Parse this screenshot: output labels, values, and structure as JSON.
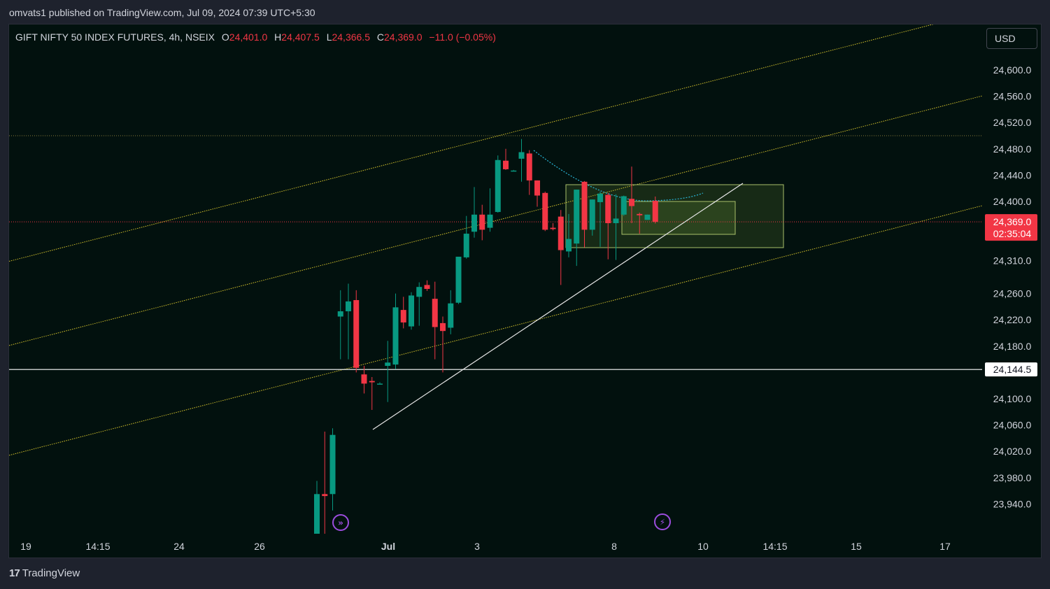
{
  "header": {
    "publish_text": "omvats1 published on TradingView.com, Jul 09, 2024 07:39 UTC+5:30"
  },
  "legend": {
    "symbol": "GIFT NIFTY 50 INDEX FUTURES, 4h, NSEIX",
    "o_label": "O",
    "o_value": "24,401.0",
    "h_label": "H",
    "h_value": "24,407.5",
    "l_label": "L",
    "l_value": "24,366.5",
    "c_label": "C",
    "c_value": "24,369.0",
    "change": "−11.0 (−0.05%)"
  },
  "currency_button": "USD",
  "footer": {
    "brand_mark": "17",
    "brand": "TradingView"
  },
  "colors": {
    "up": "#089981",
    "down": "#f23645",
    "background": "#02110e",
    "channel": "#d4c22c",
    "trendline": "#e6e6e6",
    "arc": "#2ab7d8",
    "price_badge": "#f23645",
    "event_icon": "#9c4dde"
  },
  "chart_data": {
    "type": "candlestick",
    "interval": "4h",
    "y_ticks": [
      23940,
      23980,
      24020,
      24060,
      24100,
      24144.5,
      24180,
      24220,
      24260,
      24310,
      24400,
      24440,
      24480,
      24520,
      24560,
      24600
    ],
    "y_tick_labels": [
      "23,940.0",
      "23,980.0",
      "24,020.0",
      "24,060.0",
      "24,100.0",
      "24,144.5",
      "24,180.0",
      "24,220.0",
      "24,260.0",
      "24,310.0",
      "24,400.0",
      "24,440.0",
      "24,480.0",
      "24,520.0",
      "24,560.0",
      "24,600.0"
    ],
    "x_labels": [
      "19",
      "14:15",
      "24",
      "26",
      "Jul",
      "3",
      "8",
      "10",
      "14:15",
      "15",
      "17"
    ],
    "last_price": {
      "label": "24,369.0",
      "countdown": "02:35:04",
      "value": 24369.0
    },
    "horizontal_line": {
      "label": "24,144.5",
      "value": 24144.5
    },
    "candles": [
      {
        "o": 23880,
        "h": 23975,
        "l": 23880,
        "c": 23955
      },
      {
        "o": 23955,
        "h": 24050,
        "l": 23880,
        "c": 23952
      },
      {
        "o": 23955,
        "h": 24055,
        "l": 23930,
        "c": 24045
      },
      {
        "o": 24225,
        "h": 24265,
        "l": 24160,
        "c": 24233
      },
      {
        "o": 24233,
        "h": 24275,
        "l": 24160,
        "c": 24248
      },
      {
        "o": 24250,
        "h": 24265,
        "l": 24140,
        "c": 24147
      },
      {
        "o": 24137,
        "h": 24150,
        "l": 24108,
        "c": 24123
      },
      {
        "o": 24127,
        "h": 24133,
        "l": 24083,
        "c": 24125
      },
      {
        "o": 24123,
        "h": 24125,
        "l": 24125,
        "c": 24123
      },
      {
        "o": 24150,
        "h": 24188,
        "l": 24095,
        "c": 24155
      },
      {
        "o": 24152,
        "h": 24260,
        "l": 24145,
        "c": 24239
      },
      {
        "o": 24235,
        "h": 24255,
        "l": 24207,
        "c": 24216
      },
      {
        "o": 24210,
        "h": 24262,
        "l": 24205,
        "c": 24257
      },
      {
        "o": 24255,
        "h": 24277,
        "l": 24211,
        "c": 24270
      },
      {
        "o": 24273,
        "h": 24280,
        "l": 24264,
        "c": 24267
      },
      {
        "o": 24252,
        "h": 24278,
        "l": 24160,
        "c": 24209
      },
      {
        "o": 24215,
        "h": 24225,
        "l": 24140,
        "c": 24203
      },
      {
        "o": 24208,
        "h": 24265,
        "l": 24198,
        "c": 24245
      },
      {
        "o": 24246,
        "h": 24310,
        "l": 24244,
        "c": 24316
      },
      {
        "o": 24315,
        "h": 24378,
        "l": 24313,
        "c": 24351
      },
      {
        "o": 24354,
        "h": 24422,
        "l": 24345,
        "c": 24380
      },
      {
        "o": 24380,
        "h": 24395,
        "l": 24341,
        "c": 24357
      },
      {
        "o": 24360,
        "h": 24420,
        "l": 24354,
        "c": 24380
      },
      {
        "o": 24384,
        "h": 24470,
        "l": 24383,
        "c": 24463
      },
      {
        "o": 24462,
        "h": 24480,
        "l": 24448,
        "c": 24449
      },
      {
        "o": 24447,
        "h": 24448,
        "l": 24447,
        "c": 24447
      },
      {
        "o": 24465,
        "h": 24495,
        "l": 24430,
        "c": 24475
      },
      {
        "o": 24473,
        "h": 24478,
        "l": 24410,
        "c": 24432
      },
      {
        "o": 24432,
        "h": 24430,
        "l": 24392,
        "c": 24409
      },
      {
        "o": 24413,
        "h": 24415,
        "l": 24355,
        "c": 24357
      },
      {
        "o": 24360,
        "h": 24367,
        "l": 24356,
        "c": 24358
      },
      {
        "o": 24377,
        "h": 24387,
        "l": 24273,
        "c": 24326
      },
      {
        "o": 24324,
        "h": 24381,
        "l": 24315,
        "c": 24343
      },
      {
        "o": 24336,
        "h": 24413,
        "l": 24302,
        "c": 24418
      },
      {
        "o": 24430,
        "h": 24431,
        "l": 24330,
        "c": 24357
      },
      {
        "o": 24357,
        "h": 24403,
        "l": 24348,
        "c": 24403
      },
      {
        "o": 24399,
        "h": 24415,
        "l": 24331,
        "c": 24412
      },
      {
        "o": 24410,
        "h": 24413,
        "l": 24312,
        "c": 24367
      },
      {
        "o": 24367,
        "h": 24411,
        "l": 24311,
        "c": 24374
      },
      {
        "o": 24380,
        "h": 24409,
        "l": 24378,
        "c": 24408
      },
      {
        "o": 24404,
        "h": 24453,
        "l": 24367,
        "c": 24393
      },
      {
        "o": 24381,
        "h": 24383,
        "l": 24351,
        "c": 24379
      },
      {
        "o": 24372,
        "h": 24378,
        "l": 24372,
        "c": 24380
      },
      {
        "o": 24401,
        "h": 24407.5,
        "l": 24366.5,
        "c": 24369
      }
    ]
  }
}
